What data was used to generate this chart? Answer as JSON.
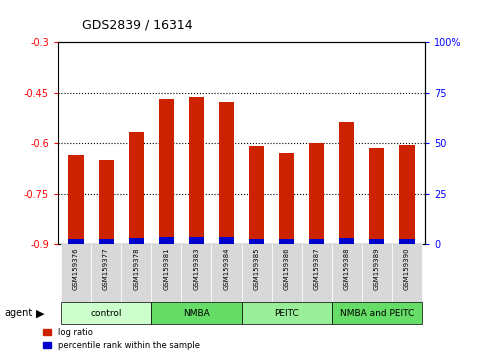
{
  "title": "GDS2839 / 16314",
  "samples": [
    "GSM159376",
    "GSM159377",
    "GSM159378",
    "GSM159381",
    "GSM159383",
    "GSM159384",
    "GSM159385",
    "GSM159386",
    "GSM159387",
    "GSM159388",
    "GSM159389",
    "GSM159390"
  ],
  "log_ratio": [
    -0.635,
    -0.648,
    -0.565,
    -0.468,
    -0.462,
    -0.476,
    -0.608,
    -0.628,
    -0.6,
    -0.535,
    -0.615,
    -0.604
  ],
  "pct_rank": [
    2.5,
    2.5,
    3.0,
    3.5,
    3.5,
    3.5,
    2.5,
    2.5,
    2.5,
    3.0,
    2.5,
    2.5
  ],
  "groups": [
    {
      "label": "control",
      "start": 0,
      "end": 3,
      "color": "#ccffcc"
    },
    {
      "label": "NMBA",
      "start": 3,
      "end": 6,
      "color": "#66dd66"
    },
    {
      "label": "PEITC",
      "start": 6,
      "end": 9,
      "color": "#99ee99"
    },
    {
      "label": "NMBA and PEITC",
      "start": 9,
      "end": 12,
      "color": "#66dd66"
    }
  ],
  "ylim_left": [
    -0.9,
    -0.3
  ],
  "ylim_right": [
    0,
    100
  ],
  "yticks_left": [
    -0.9,
    -0.75,
    -0.6,
    -0.45,
    -0.3
  ],
  "yticks_right": [
    0,
    25,
    50,
    75,
    100
  ],
  "bar_color_red": "#cc2200",
  "bar_color_blue": "#0000cc",
  "bg_color": "#e8e8e8",
  "legend_red": "log ratio",
  "legend_blue": "percentile rank within the sample"
}
